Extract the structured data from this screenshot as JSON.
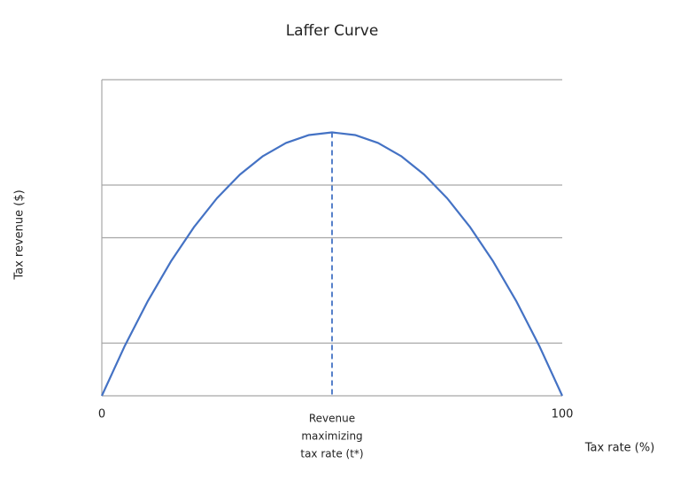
{
  "chart_data": {
    "type": "line",
    "title": "Laffer Curve",
    "x_label": "Tax rate (%)",
    "y_label": "Tax revenue ($)",
    "x": [
      0,
      5,
      10,
      15,
      20,
      25,
      30,
      35,
      40,
      45,
      50,
      55,
      60,
      65,
      70,
      75,
      80,
      85,
      90,
      95,
      100
    ],
    "series": [
      {
        "color": "#4472c4",
        "values": [
          0,
          0.95,
          1.8,
          2.55,
          3.2,
          3.75,
          4.2,
          4.55,
          4.8,
          4.95,
          5,
          4.95,
          4.8,
          4.55,
          4.2,
          3.75,
          3.2,
          2.55,
          1.8,
          0.95,
          0
        ]
      }
    ],
    "xlim": [
      0,
      100
    ],
    "xticks": [
      0,
      100
    ],
    "ylim": [
      0,
      6
    ],
    "ygrid": [
      1,
      3,
      4,
      6
    ],
    "grid_color": "#a6a6a6",
    "annotation": {
      "x": 50,
      "y": 5,
      "lines": [
        "Revenue",
        "maximizing",
        "tax rate (t*)"
      ]
    }
  }
}
